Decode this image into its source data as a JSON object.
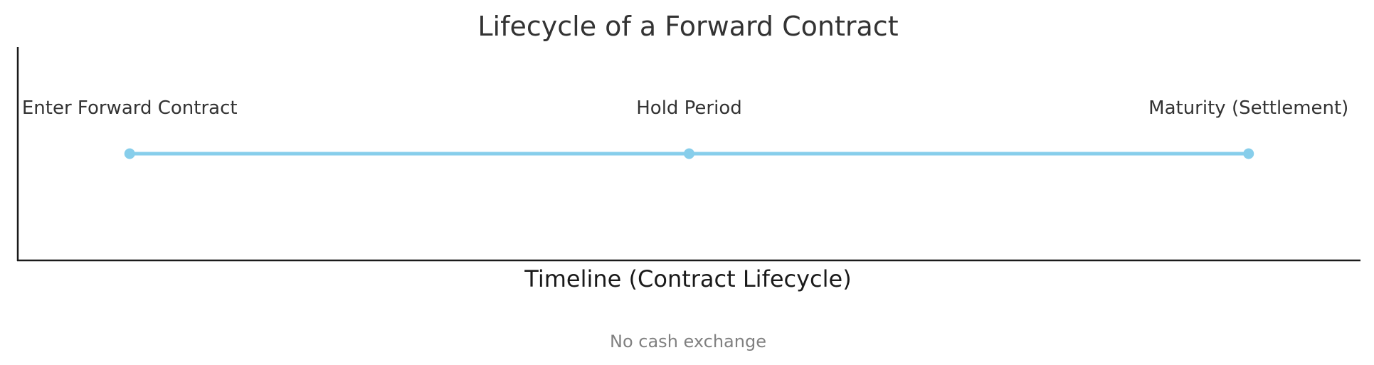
{
  "chart_data": {
    "type": "line",
    "title": "Lifecycle of a Forward Contract",
    "xlabel": "Timeline (Contract Lifecycle)",
    "ylabel": "",
    "annotation": "No cash exchange",
    "x": [
      0,
      1,
      2
    ],
    "y": [
      0,
      0,
      0
    ],
    "xlim": [
      -0.2,
      2.2
    ],
    "ylim": [
      -1,
      1
    ],
    "point_labels": [
      "Enter Forward Contract",
      "Hold Period",
      "Maturity (Settlement)"
    ],
    "grid": false,
    "legend": "none",
    "series": [
      {
        "color": "#87CEEB",
        "values": [
          0,
          0,
          0
        ]
      }
    ]
  }
}
